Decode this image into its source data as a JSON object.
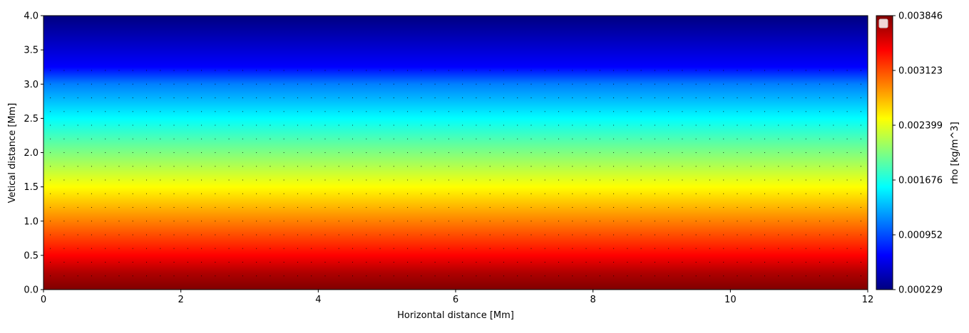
{
  "chart_data": {
    "type": "heatmap",
    "title": "",
    "xlabel": "Horizontal distance [Mm]",
    "ylabel": "Vetical distance [Mm]",
    "xlim": [
      0,
      12
    ],
    "ylim": [
      0,
      4
    ],
    "x_ticks": [
      "0",
      "2",
      "4",
      "6",
      "8",
      "10",
      "12"
    ],
    "y_ticks": [
      "0.0",
      "0.5",
      "1.0",
      "1.5",
      "2.0",
      "2.5",
      "3.0",
      "3.5",
      "4.0"
    ],
    "colormap": "jet",
    "colorbar": {
      "label": "rho [kg/m^3]",
      "min": 0.000229,
      "max": 0.003846,
      "ticks": [
        "0.000229",
        "0.000952",
        "0.001676",
        "0.002399",
        "0.003123",
        "0.003846"
      ]
    },
    "field_profile": {
      "description_of_values": "rho vs vertical distance (uniform horizontally)",
      "y": [
        0.0,
        0.5,
        1.0,
        1.5,
        2.0,
        2.5,
        3.0,
        3.5,
        4.0
      ],
      "rho": [
        0.003846,
        0.00317,
        0.00255,
        0.00199,
        0.00152,
        0.00112,
        0.0008,
        0.00048,
        0.000229
      ]
    },
    "vector_field": {
      "x_spacing": 0.2,
      "y_spacing": 0.2,
      "y_range": [
        0.2,
        3.2
      ],
      "marker": "dot"
    },
    "legend": {
      "placement": "top-left",
      "entries": [
        ""
      ]
    }
  }
}
